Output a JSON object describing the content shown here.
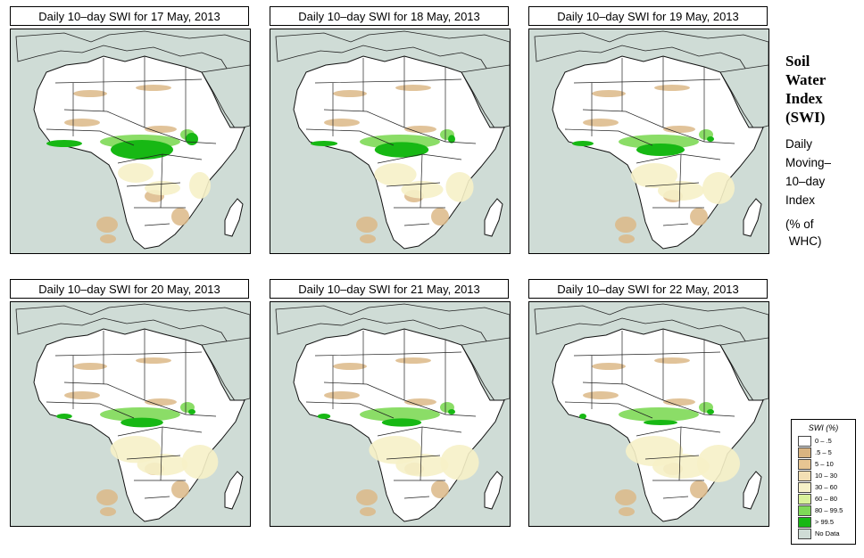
{
  "panels": [
    {
      "title": "Daily 10–day SWI for  17 May, 2013"
    },
    {
      "title": "Daily 10–day SWI for  18 May, 2013"
    },
    {
      "title": "Daily 10–day SWI for  19 May, 2013"
    },
    {
      "title": "Daily 10–day SWI for  20 May, 2013"
    },
    {
      "title": "Daily 10–day SWI for  21 May, 2013"
    },
    {
      "title": "Daily 10–day SWI for  22 May, 2013"
    }
  ],
  "side": {
    "title_lines": [
      "Soil",
      "Water",
      "Index",
      "(SWI)"
    ],
    "desc_lines": [
      "Daily",
      "Moving–",
      "10–day",
      "Index"
    ],
    "note_lines": [
      "(% of",
      " WHC)"
    ]
  },
  "legend": {
    "title": "SWI (%)",
    "items": [
      {
        "label": "0 – .5",
        "color": "#ffffff"
      },
      {
        "label": ".5 – 5",
        "color": "#d9b481"
      },
      {
        "label": "5 – 10",
        "color": "#e7c592"
      },
      {
        "label": "10 – 30",
        "color": "#f3dfb4"
      },
      {
        "label": "30 – 60",
        "color": "#f6f1c8"
      },
      {
        "label": "60 – 80",
        "color": "#d9f29a"
      },
      {
        "label": "80 – 99.5",
        "color": "#7ed957"
      },
      {
        "label": "> 99.5",
        "color": "#17b814"
      },
      {
        "label": "No Data",
        "color": "#cfdcd6"
      }
    ]
  },
  "colors": {
    "ocean": "#cfdcd6",
    "land": "#ffffff",
    "dry": "#dcb887",
    "wet": "#17b814",
    "moist": "#7ed957",
    "light": "#f6f1c8"
  }
}
